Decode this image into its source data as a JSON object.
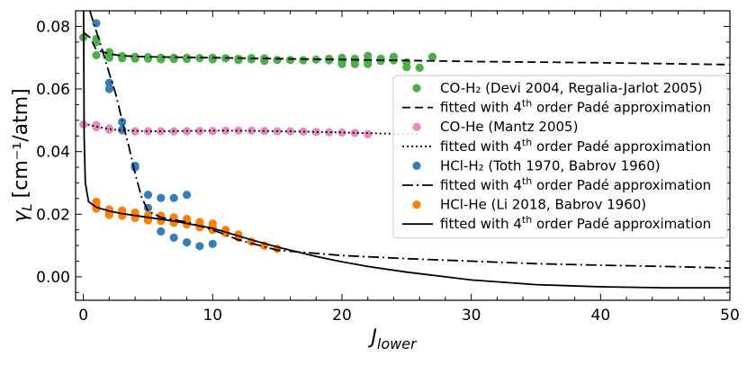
{
  "chart_data": {
    "type": "scatter",
    "xlabel": "J",
    "xlabel_sub": "lower",
    "ylabel_prefix": "γ",
    "ylabel_sub": "L",
    "ylabel_units": "[cm⁻¹/atm]",
    "xlim": [
      -0.6,
      50
    ],
    "ylim": [
      -0.0075,
      0.085
    ],
    "x_ticks": [
      0,
      10,
      20,
      30,
      40,
      50
    ],
    "x_tick_labels": [
      "0",
      "10",
      "20",
      "30",
      "40",
      "50"
    ],
    "y_ticks": [
      0.0,
      0.02,
      0.04,
      0.06,
      0.08
    ],
    "y_tick_labels": [
      "0.00",
      "0.02",
      "0.04",
      "0.06",
      "0.08"
    ],
    "grid": false,
    "legend_position": "center-right",
    "series": [
      {
        "name": "CO-H₂ (Devi 2004, Regalia-Jarlot 2005)",
        "kind": "scatter",
        "color": "#4daf4a",
        "points": [
          [
            0,
            0.0765
          ],
          [
            1,
            0.076
          ],
          [
            1,
            0.075
          ],
          [
            1,
            0.0708
          ],
          [
            2,
            0.0718
          ],
          [
            2,
            0.0708
          ],
          [
            2,
            0.07
          ],
          [
            3,
            0.0705
          ],
          [
            3,
            0.0698
          ],
          [
            4,
            0.0703
          ],
          [
            4,
            0.0697
          ],
          [
            5,
            0.0702
          ],
          [
            5,
            0.0697
          ],
          [
            6,
            0.07
          ],
          [
            6,
            0.0695
          ],
          [
            7,
            0.07
          ],
          [
            7,
            0.0696
          ],
          [
            8,
            0.07
          ],
          [
            8,
            0.0696
          ],
          [
            9,
            0.0699
          ],
          [
            10,
            0.07
          ],
          [
            10,
            0.0695
          ],
          [
            11,
            0.0698
          ],
          [
            12,
            0.0697
          ],
          [
            12,
            0.0693
          ],
          [
            13,
            0.0699
          ],
          [
            13,
            0.0695
          ],
          [
            14,
            0.0698
          ],
          [
            14,
            0.069
          ],
          [
            15,
            0.0693
          ],
          [
            16,
            0.0693
          ],
          [
            17,
            0.0692
          ],
          [
            18,
            0.0694
          ],
          [
            19,
            0.0692
          ],
          [
            19,
            0.0697
          ],
          [
            20,
            0.07
          ],
          [
            20,
            0.0688
          ],
          [
            20,
            0.068
          ],
          [
            21,
            0.0697
          ],
          [
            21,
            0.0688
          ],
          [
            21,
            0.068
          ],
          [
            22,
            0.0706
          ],
          [
            22,
            0.069
          ],
          [
            22,
            0.068
          ],
          [
            23,
            0.0697
          ],
          [
            23,
            0.069
          ],
          [
            24,
            0.0703
          ],
          [
            24,
            0.0692
          ],
          [
            25,
            0.0685
          ],
          [
            25,
            0.067
          ],
          [
            26,
            0.0668
          ],
          [
            27,
            0.0703
          ]
        ]
      },
      {
        "name": "fitted with 4th order Padé approximation",
        "kind": "line",
        "dash": "9,5",
        "color": "#000000",
        "curve": [
          [
            0.05,
            0.078
          ],
          [
            0.5,
            0.0765
          ],
          [
            1,
            0.0725
          ],
          [
            2,
            0.0712
          ],
          [
            3,
            0.0706
          ],
          [
            5,
            0.0703
          ],
          [
            10,
            0.07
          ],
          [
            15,
            0.0697
          ],
          [
            20,
            0.0694
          ],
          [
            25,
            0.0691
          ],
          [
            30,
            0.0688
          ],
          [
            35,
            0.0686
          ],
          [
            40,
            0.0684
          ],
          [
            45,
            0.0681
          ],
          [
            50,
            0.0678
          ]
        ]
      },
      {
        "name": "CO-He (Mantz 2005)",
        "kind": "scatter",
        "color": "#e78ac3",
        "points": [
          [
            0,
            0.0487
          ],
          [
            1,
            0.0485
          ],
          [
            1,
            0.0478
          ],
          [
            2,
            0.0474
          ],
          [
            2,
            0.047
          ],
          [
            3,
            0.0467
          ],
          [
            4,
            0.0465
          ],
          [
            5,
            0.0465
          ],
          [
            6,
            0.0465
          ],
          [
            7,
            0.0465
          ],
          [
            8,
            0.0465
          ],
          [
            9,
            0.0466
          ],
          [
            10,
            0.0466
          ],
          [
            11,
            0.0467
          ],
          [
            12,
            0.0467
          ],
          [
            13,
            0.0467
          ],
          [
            14,
            0.0466
          ],
          [
            15,
            0.0465
          ],
          [
            16,
            0.0465
          ],
          [
            17,
            0.0464
          ],
          [
            18,
            0.0463
          ],
          [
            19,
            0.0462
          ],
          [
            20,
            0.0461
          ],
          [
            21,
            0.046
          ],
          [
            22,
            0.0456
          ]
        ]
      },
      {
        "name": "fitted with 4th order Padé approximation",
        "kind": "line",
        "dash": "2,3",
        "color": "#000000",
        "curve": [
          [
            0,
            0.049
          ],
          [
            1,
            0.048
          ],
          [
            2,
            0.0472
          ],
          [
            3,
            0.0468
          ],
          [
            5,
            0.0465
          ],
          [
            8,
            0.0466
          ],
          [
            11,
            0.0467
          ],
          [
            14,
            0.0466
          ],
          [
            17,
            0.0464
          ],
          [
            20,
            0.0461
          ],
          [
            22,
            0.0459
          ],
          [
            24,
            0.0457
          ],
          [
            26,
            0.0455
          ]
        ]
      },
      {
        "name": "HCl-H₂ (Toth 1970, Babrov 1960)",
        "kind": "scatter",
        "color": "#377eb8",
        "points": [
          [
            1,
            0.081
          ],
          [
            2,
            0.062
          ],
          [
            2,
            0.06
          ],
          [
            3,
            0.0495
          ],
          [
            3,
            0.047
          ],
          [
            4,
            0.0355
          ],
          [
            4,
            0.035
          ],
          [
            5,
            0.0262
          ],
          [
            5,
            0.022
          ],
          [
            6,
            0.0252
          ],
          [
            6,
            0.0145
          ],
          [
            7,
            0.0252
          ],
          [
            7,
            0.0125
          ],
          [
            8,
            0.0262
          ],
          [
            8,
            0.011
          ],
          [
            9,
            0.0098
          ],
          [
            10,
            0.0105
          ]
        ]
      },
      {
        "name": "fitted with 4th order Padé approximation",
        "kind": "line",
        "dash": "12,4,2,4",
        "color": "#000000",
        "curve": [
          [
            0.5,
            0.085
          ],
          [
            1,
            0.0785
          ],
          [
            1.5,
            0.072
          ],
          [
            2,
            0.065
          ],
          [
            2.5,
            0.0585
          ],
          [
            3,
            0.05
          ],
          [
            3.5,
            0.042
          ],
          [
            4,
            0.033
          ],
          [
            4.5,
            0.0255
          ],
          [
            5,
            0.021
          ],
          [
            6,
            0.019
          ],
          [
            8,
            0.0175
          ],
          [
            10,
            0.015
          ],
          [
            12,
            0.0118
          ],
          [
            15,
            0.0085
          ],
          [
            20,
            0.0068
          ],
          [
            25,
            0.0058
          ],
          [
            30,
            0.005
          ],
          [
            35,
            0.0042
          ],
          [
            40,
            0.0037
          ],
          [
            45,
            0.0033
          ],
          [
            50,
            0.0028
          ]
        ]
      },
      {
        "name": "HCl-He (Li 2018, Babrov 1960)",
        "kind": "scatter",
        "color": "#ff7f00",
        "points": [
          [
            1,
            0.024
          ],
          [
            1,
            0.0228
          ],
          [
            1,
            0.0218
          ],
          [
            2,
            0.0215
          ],
          [
            2,
            0.0205
          ],
          [
            2,
            0.0198
          ],
          [
            3,
            0.0212
          ],
          [
            3,
            0.0203
          ],
          [
            3,
            0.0195
          ],
          [
            4,
            0.0205
          ],
          [
            4,
            0.0195
          ],
          [
            4,
            0.0188
          ],
          [
            5,
            0.0198
          ],
          [
            5,
            0.0188
          ],
          [
            5,
            0.018
          ],
          [
            6,
            0.0195
          ],
          [
            6,
            0.0185
          ],
          [
            6,
            0.0178
          ],
          [
            7,
            0.019
          ],
          [
            7,
            0.018
          ],
          [
            7,
            0.0173
          ],
          [
            8,
            0.0185
          ],
          [
            8,
            0.0175
          ],
          [
            8,
            0.0167
          ],
          [
            9,
            0.0175
          ],
          [
            9,
            0.0165
          ],
          [
            9,
            0.0158
          ],
          [
            10,
            0.017
          ],
          [
            10,
            0.016
          ],
          [
            10,
            0.015
          ],
          [
            11,
            0.015
          ],
          [
            11,
            0.014
          ],
          [
            12,
            0.0135
          ],
          [
            12,
            0.0125
          ],
          [
            13,
            0.0112
          ],
          [
            14,
            0.01
          ],
          [
            15,
            0.009
          ]
        ]
      },
      {
        "name": "fitted with 4th order Padé approximation",
        "kind": "line",
        "dash": "",
        "color": "#000000",
        "curve": [
          [
            0.02,
            0.085
          ],
          [
            0.06,
            0.045
          ],
          [
            0.15,
            0.03
          ],
          [
            0.4,
            0.024
          ],
          [
            1,
            0.0222
          ],
          [
            2,
            0.021
          ],
          [
            3,
            0.0202
          ],
          [
            5,
            0.019
          ],
          [
            7,
            0.0178
          ],
          [
            10,
            0.0155
          ],
          [
            13,
            0.0118
          ],
          [
            15,
            0.0095
          ],
          [
            18,
            0.0065
          ],
          [
            20,
            0.0048
          ],
          [
            22,
            0.0033
          ],
          [
            25,
            0.0015
          ],
          [
            28,
            0.0
          ],
          [
            30,
            -0.001
          ],
          [
            35,
            -0.0025
          ],
          [
            40,
            -0.0032
          ],
          [
            45,
            -0.0035
          ],
          [
            50,
            -0.0035
          ]
        ]
      }
    ]
  }
}
